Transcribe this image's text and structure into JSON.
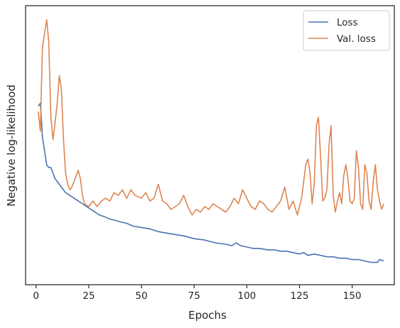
{
  "chart_data": {
    "type": "line",
    "title": "",
    "xlabel": "Epochs",
    "ylabel": "Negative log-likelihood",
    "xlim": [
      -5,
      170
    ],
    "ylim": [
      0,
      100
    ],
    "y_ticks_labeled": false,
    "x_ticks": [
      0,
      25,
      50,
      75,
      100,
      125,
      150
    ],
    "x_tick_labels": [
      "0",
      "25",
      "50",
      "75",
      "100",
      "125",
      "150"
    ],
    "legend_position": "top-right",
    "grid": false,
    "series": [
      {
        "name": "Loss",
        "color": "#4c72b0",
        "points": [
          [
            1,
            64
          ],
          [
            2,
            65
          ],
          [
            3,
            53
          ],
          [
            4,
            48
          ],
          [
            5,
            43
          ],
          [
            6,
            42
          ],
          [
            7,
            42
          ],
          [
            8,
            40
          ],
          [
            9,
            38
          ],
          [
            10,
            37
          ],
          [
            12,
            35
          ],
          [
            14,
            33
          ],
          [
            16,
            32
          ],
          [
            18,
            31
          ],
          [
            20,
            30
          ],
          [
            22,
            29
          ],
          [
            24,
            28
          ],
          [
            26,
            27
          ],
          [
            28,
            26
          ],
          [
            30,
            25
          ],
          [
            32,
            24.5
          ],
          [
            35,
            23.5
          ],
          [
            38,
            23
          ],
          [
            40,
            22.5
          ],
          [
            43,
            22
          ],
          [
            46,
            21
          ],
          [
            50,
            20.5
          ],
          [
            54,
            20
          ],
          [
            58,
            19
          ],
          [
            62,
            18.5
          ],
          [
            66,
            18
          ],
          [
            70,
            17.5
          ],
          [
            75,
            16.5
          ],
          [
            80,
            16
          ],
          [
            85,
            15
          ],
          [
            90,
            14.5
          ],
          [
            93,
            14
          ],
          [
            95,
            15
          ],
          [
            97,
            14
          ],
          [
            100,
            13.5
          ],
          [
            103,
            13
          ],
          [
            106,
            13
          ],
          [
            110,
            12.5
          ],
          [
            113,
            12.5
          ],
          [
            116,
            12
          ],
          [
            119,
            12
          ],
          [
            122,
            11.5
          ],
          [
            125,
            11
          ],
          [
            127,
            11.5
          ],
          [
            129,
            10.5
          ],
          [
            132,
            11
          ],
          [
            135,
            10.5
          ],
          [
            138,
            10
          ],
          [
            141,
            10
          ],
          [
            144,
            9.5
          ],
          [
            147,
            9.5
          ],
          [
            150,
            9
          ],
          [
            153,
            9
          ],
          [
            156,
            8.5
          ],
          [
            159,
            8
          ],
          [
            162,
            8
          ],
          [
            163,
            9
          ],
          [
            165,
            8.5
          ]
        ]
      },
      {
        "name": "Val. loss",
        "color": "#dd8452",
        "points": [
          [
            1,
            62
          ],
          [
            2,
            55
          ],
          [
            3,
            85
          ],
          [
            4,
            90
          ],
          [
            5,
            95
          ],
          [
            6,
            87
          ],
          [
            7,
            60
          ],
          [
            8,
            52
          ],
          [
            9,
            58
          ],
          [
            10,
            65
          ],
          [
            11,
            75
          ],
          [
            12,
            70
          ],
          [
            13,
            52
          ],
          [
            14,
            40
          ],
          [
            15,
            36
          ],
          [
            16,
            34
          ],
          [
            17,
            35
          ],
          [
            18,
            37
          ],
          [
            19,
            39
          ],
          [
            20,
            41
          ],
          [
            21,
            38
          ],
          [
            22,
            32
          ],
          [
            23,
            29
          ],
          [
            25,
            28
          ],
          [
            27,
            30
          ],
          [
            29,
            28
          ],
          [
            31,
            30
          ],
          [
            33,
            31
          ],
          [
            35,
            30
          ],
          [
            37,
            33
          ],
          [
            39,
            32
          ],
          [
            41,
            34
          ],
          [
            43,
            31
          ],
          [
            45,
            34
          ],
          [
            47,
            32
          ],
          [
            50,
            31
          ],
          [
            52,
            33
          ],
          [
            54,
            30
          ],
          [
            56,
            31
          ],
          [
            58,
            36
          ],
          [
            60,
            30
          ],
          [
            62,
            29
          ],
          [
            64,
            27
          ],
          [
            66,
            28
          ],
          [
            68,
            29
          ],
          [
            70,
            32
          ],
          [
            72,
            28
          ],
          [
            74,
            25
          ],
          [
            76,
            27
          ],
          [
            78,
            26
          ],
          [
            80,
            28
          ],
          [
            82,
            27
          ],
          [
            84,
            29
          ],
          [
            86,
            28
          ],
          [
            88,
            27
          ],
          [
            90,
            26
          ],
          [
            92,
            28
          ],
          [
            94,
            31
          ],
          [
            96,
            29
          ],
          [
            98,
            34
          ],
          [
            100,
            31
          ],
          [
            102,
            28
          ],
          [
            104,
            27
          ],
          [
            106,
            30
          ],
          [
            108,
            29
          ],
          [
            110,
            27
          ],
          [
            112,
            26
          ],
          [
            114,
            28
          ],
          [
            116,
            30
          ],
          [
            118,
            35
          ],
          [
            120,
            27
          ],
          [
            122,
            30
          ],
          [
            124,
            25
          ],
          [
            126,
            31
          ],
          [
            128,
            43
          ],
          [
            129,
            45
          ],
          [
            130,
            40
          ],
          [
            131,
            29
          ],
          [
            132,
            36
          ],
          [
            133,
            57
          ],
          [
            134,
            60
          ],
          [
            135,
            46
          ],
          [
            136,
            30
          ],
          [
            137,
            31
          ],
          [
            138,
            34
          ],
          [
            139,
            50
          ],
          [
            140,
            57
          ],
          [
            141,
            32
          ],
          [
            142,
            26
          ],
          [
            143,
            30
          ],
          [
            144,
            33
          ],
          [
            145,
            29
          ],
          [
            146,
            39
          ],
          [
            147,
            43
          ],
          [
            148,
            38
          ],
          [
            149,
            30
          ],
          [
            150,
            29
          ],
          [
            151,
            31
          ],
          [
            152,
            48
          ],
          [
            153,
            42
          ],
          [
            154,
            29
          ],
          [
            155,
            27
          ],
          [
            156,
            43
          ],
          [
            157,
            40
          ],
          [
            158,
            30
          ],
          [
            159,
            27
          ],
          [
            160,
            37
          ],
          [
            161,
            43
          ],
          [
            162,
            34
          ],
          [
            163,
            30
          ],
          [
            164,
            27
          ],
          [
            165,
            29
          ]
        ]
      }
    ]
  }
}
